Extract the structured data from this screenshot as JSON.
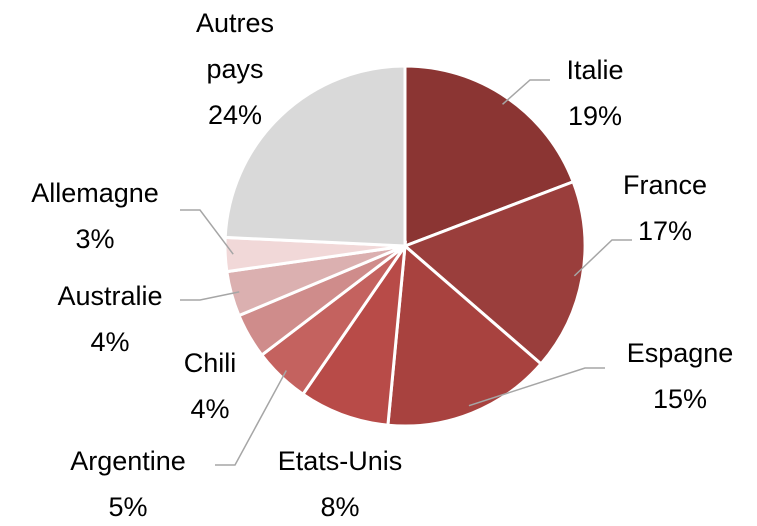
{
  "chart_data": {
    "type": "pie",
    "categories": [
      "Italie",
      "France",
      "Espagne",
      "Etats-Unis",
      "Argentine",
      "Chili",
      "Australie",
      "Allemagne",
      "Autres pays"
    ],
    "values": [
      19,
      17,
      15,
      8,
      5,
      4,
      4,
      3,
      24
    ],
    "value_labels": [
      "19%",
      "17%",
      "15%",
      "8%",
      "5%",
      "4%",
      "4%",
      "3%",
      "24%"
    ],
    "colors": [
      "#8b3533",
      "#9a3e3c",
      "#a8423f",
      "#b84b48",
      "#c4625f",
      "#cf8c8b",
      "#dbb0b0",
      "#f1d8d8",
      "#d9d9d9"
    ]
  }
}
